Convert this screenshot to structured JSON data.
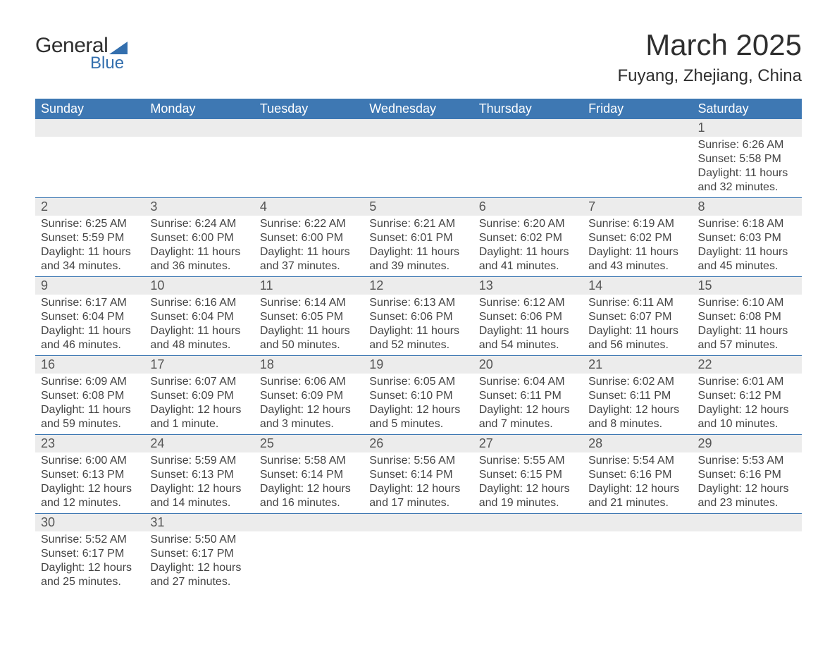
{
  "brand": {
    "text_general": "General",
    "text_blue": "Blue",
    "accent_color": "#336fae"
  },
  "title": "March 2025",
  "location": "Fuyang, Zhejiang, China",
  "colors": {
    "header_bg": "#3e78b3",
    "header_text": "#ffffff",
    "daynum_bg": "#ececec",
    "border": "#3e78b3",
    "body_text": "#444444",
    "background": "#ffffff"
  },
  "layout": {
    "columns": 7,
    "rows": 6,
    "daynum_fontsize": 18,
    "body_fontsize": 16,
    "header_fontsize": 18,
    "title_fontsize": 42,
    "location_fontsize": 24
  },
  "weekdays": [
    "Sunday",
    "Monday",
    "Tuesday",
    "Wednesday",
    "Thursday",
    "Friday",
    "Saturday"
  ],
  "weeks": [
    [
      null,
      null,
      null,
      null,
      null,
      null,
      {
        "n": "1",
        "sunrise": "Sunrise: 6:26 AM",
        "sunset": "Sunset: 5:58 PM",
        "daylight1": "Daylight: 11 hours",
        "daylight2": "and 32 minutes."
      }
    ],
    [
      {
        "n": "2",
        "sunrise": "Sunrise: 6:25 AM",
        "sunset": "Sunset: 5:59 PM",
        "daylight1": "Daylight: 11 hours",
        "daylight2": "and 34 minutes."
      },
      {
        "n": "3",
        "sunrise": "Sunrise: 6:24 AM",
        "sunset": "Sunset: 6:00 PM",
        "daylight1": "Daylight: 11 hours",
        "daylight2": "and 36 minutes."
      },
      {
        "n": "4",
        "sunrise": "Sunrise: 6:22 AM",
        "sunset": "Sunset: 6:00 PM",
        "daylight1": "Daylight: 11 hours",
        "daylight2": "and 37 minutes."
      },
      {
        "n": "5",
        "sunrise": "Sunrise: 6:21 AM",
        "sunset": "Sunset: 6:01 PM",
        "daylight1": "Daylight: 11 hours",
        "daylight2": "and 39 minutes."
      },
      {
        "n": "6",
        "sunrise": "Sunrise: 6:20 AM",
        "sunset": "Sunset: 6:02 PM",
        "daylight1": "Daylight: 11 hours",
        "daylight2": "and 41 minutes."
      },
      {
        "n": "7",
        "sunrise": "Sunrise: 6:19 AM",
        "sunset": "Sunset: 6:02 PM",
        "daylight1": "Daylight: 11 hours",
        "daylight2": "and 43 minutes."
      },
      {
        "n": "8",
        "sunrise": "Sunrise: 6:18 AM",
        "sunset": "Sunset: 6:03 PM",
        "daylight1": "Daylight: 11 hours",
        "daylight2": "and 45 minutes."
      }
    ],
    [
      {
        "n": "9",
        "sunrise": "Sunrise: 6:17 AM",
        "sunset": "Sunset: 6:04 PM",
        "daylight1": "Daylight: 11 hours",
        "daylight2": "and 46 minutes."
      },
      {
        "n": "10",
        "sunrise": "Sunrise: 6:16 AM",
        "sunset": "Sunset: 6:04 PM",
        "daylight1": "Daylight: 11 hours",
        "daylight2": "and 48 minutes."
      },
      {
        "n": "11",
        "sunrise": "Sunrise: 6:14 AM",
        "sunset": "Sunset: 6:05 PM",
        "daylight1": "Daylight: 11 hours",
        "daylight2": "and 50 minutes."
      },
      {
        "n": "12",
        "sunrise": "Sunrise: 6:13 AM",
        "sunset": "Sunset: 6:06 PM",
        "daylight1": "Daylight: 11 hours",
        "daylight2": "and 52 minutes."
      },
      {
        "n": "13",
        "sunrise": "Sunrise: 6:12 AM",
        "sunset": "Sunset: 6:06 PM",
        "daylight1": "Daylight: 11 hours",
        "daylight2": "and 54 minutes."
      },
      {
        "n": "14",
        "sunrise": "Sunrise: 6:11 AM",
        "sunset": "Sunset: 6:07 PM",
        "daylight1": "Daylight: 11 hours",
        "daylight2": "and 56 minutes."
      },
      {
        "n": "15",
        "sunrise": "Sunrise: 6:10 AM",
        "sunset": "Sunset: 6:08 PM",
        "daylight1": "Daylight: 11 hours",
        "daylight2": "and 57 minutes."
      }
    ],
    [
      {
        "n": "16",
        "sunrise": "Sunrise: 6:09 AM",
        "sunset": "Sunset: 6:08 PM",
        "daylight1": "Daylight: 11 hours",
        "daylight2": "and 59 minutes."
      },
      {
        "n": "17",
        "sunrise": "Sunrise: 6:07 AM",
        "sunset": "Sunset: 6:09 PM",
        "daylight1": "Daylight: 12 hours",
        "daylight2": "and 1 minute."
      },
      {
        "n": "18",
        "sunrise": "Sunrise: 6:06 AM",
        "sunset": "Sunset: 6:09 PM",
        "daylight1": "Daylight: 12 hours",
        "daylight2": "and 3 minutes."
      },
      {
        "n": "19",
        "sunrise": "Sunrise: 6:05 AM",
        "sunset": "Sunset: 6:10 PM",
        "daylight1": "Daylight: 12 hours",
        "daylight2": "and 5 minutes."
      },
      {
        "n": "20",
        "sunrise": "Sunrise: 6:04 AM",
        "sunset": "Sunset: 6:11 PM",
        "daylight1": "Daylight: 12 hours",
        "daylight2": "and 7 minutes."
      },
      {
        "n": "21",
        "sunrise": "Sunrise: 6:02 AM",
        "sunset": "Sunset: 6:11 PM",
        "daylight1": "Daylight: 12 hours",
        "daylight2": "and 8 minutes."
      },
      {
        "n": "22",
        "sunrise": "Sunrise: 6:01 AM",
        "sunset": "Sunset: 6:12 PM",
        "daylight1": "Daylight: 12 hours",
        "daylight2": "and 10 minutes."
      }
    ],
    [
      {
        "n": "23",
        "sunrise": "Sunrise: 6:00 AM",
        "sunset": "Sunset: 6:13 PM",
        "daylight1": "Daylight: 12 hours",
        "daylight2": "and 12 minutes."
      },
      {
        "n": "24",
        "sunrise": "Sunrise: 5:59 AM",
        "sunset": "Sunset: 6:13 PM",
        "daylight1": "Daylight: 12 hours",
        "daylight2": "and 14 minutes."
      },
      {
        "n": "25",
        "sunrise": "Sunrise: 5:58 AM",
        "sunset": "Sunset: 6:14 PM",
        "daylight1": "Daylight: 12 hours",
        "daylight2": "and 16 minutes."
      },
      {
        "n": "26",
        "sunrise": "Sunrise: 5:56 AM",
        "sunset": "Sunset: 6:14 PM",
        "daylight1": "Daylight: 12 hours",
        "daylight2": "and 17 minutes."
      },
      {
        "n": "27",
        "sunrise": "Sunrise: 5:55 AM",
        "sunset": "Sunset: 6:15 PM",
        "daylight1": "Daylight: 12 hours",
        "daylight2": "and 19 minutes."
      },
      {
        "n": "28",
        "sunrise": "Sunrise: 5:54 AM",
        "sunset": "Sunset: 6:16 PM",
        "daylight1": "Daylight: 12 hours",
        "daylight2": "and 21 minutes."
      },
      {
        "n": "29",
        "sunrise": "Sunrise: 5:53 AM",
        "sunset": "Sunset: 6:16 PM",
        "daylight1": "Daylight: 12 hours",
        "daylight2": "and 23 minutes."
      }
    ],
    [
      {
        "n": "30",
        "sunrise": "Sunrise: 5:52 AM",
        "sunset": "Sunset: 6:17 PM",
        "daylight1": "Daylight: 12 hours",
        "daylight2": "and 25 minutes."
      },
      {
        "n": "31",
        "sunrise": "Sunrise: 5:50 AM",
        "sunset": "Sunset: 6:17 PM",
        "daylight1": "Daylight: 12 hours",
        "daylight2": "and 27 minutes."
      },
      null,
      null,
      null,
      null,
      null
    ]
  ]
}
